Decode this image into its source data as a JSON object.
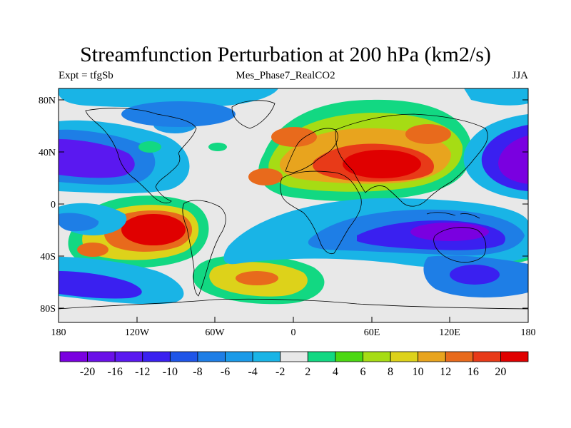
{
  "title": "Streamfunction Perturbation at 200 hPa (km2/s)",
  "left_label": "Expt = tfgSb",
  "center_label": "Mes_Phase7_RealCO2",
  "right_label": "JJA",
  "lat_ticks": [
    "80N",
    "40N",
    "0",
    "40S",
    "80S"
  ],
  "lon_ticks": [
    "180",
    "120W",
    "60W",
    "0",
    "60E",
    "120E",
    "180"
  ],
  "colorbar": {
    "labels": [
      "-20",
      "-16",
      "-12",
      "-10",
      "-8",
      "-6",
      "-4",
      "-2",
      "2",
      "4",
      "6",
      "8",
      "10",
      "12",
      "16",
      "20"
    ],
    "colors": [
      "#7a00e0",
      "#6a10e8",
      "#5a18f0",
      "#3a20f0",
      "#1f55e8",
      "#1e7ee6",
      "#1a9ae8",
      "#19b4e6",
      "#e8e8e8",
      "#12d882",
      "#4bd812",
      "#a6dc14",
      "#ddd21a",
      "#e8a41e",
      "#e86a1c",
      "#e83a18",
      "#e00000"
    ]
  },
  "map_colors": {
    "neutral": "#e8e8e8",
    "coast": "#000000"
  }
}
